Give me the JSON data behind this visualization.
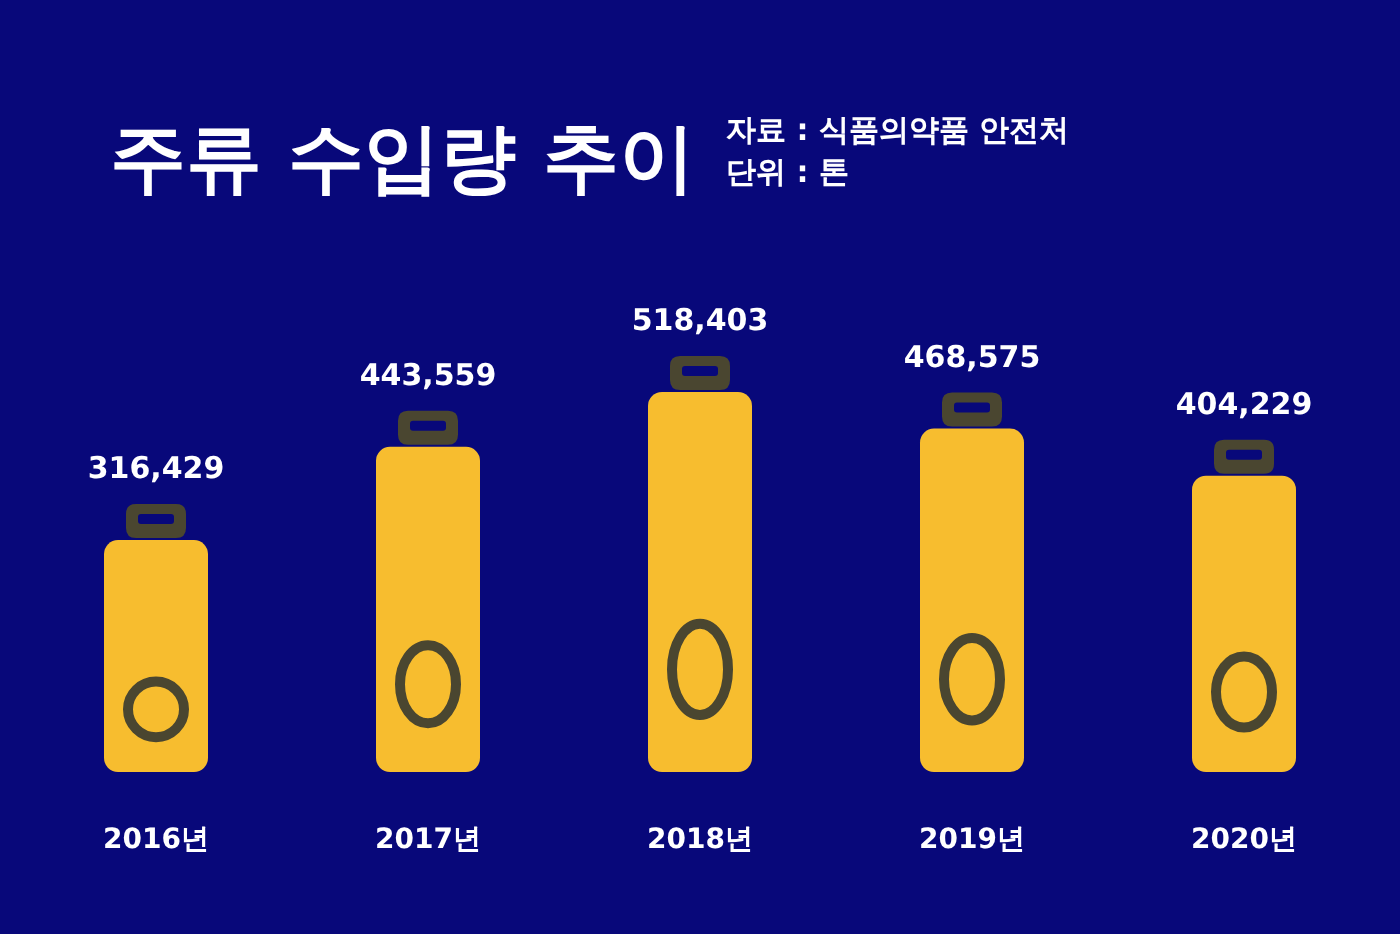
{
  "chart_data": {
    "type": "bar",
    "title": "주류 수입량 추이",
    "annotations": [
      "자료 : 식품의약품 안전처",
      "단위 : 톤"
    ],
    "categories": [
      "2016년",
      "2017년",
      "2018년",
      "2019년",
      "2020년"
    ],
    "values": [
      316429,
      443559,
      518403,
      468575,
      404229
    ],
    "value_labels": [
      "316,429",
      "443,559",
      "518,403",
      "468,575",
      "404,229"
    ],
    "color": "#f7bd2f"
  }
}
